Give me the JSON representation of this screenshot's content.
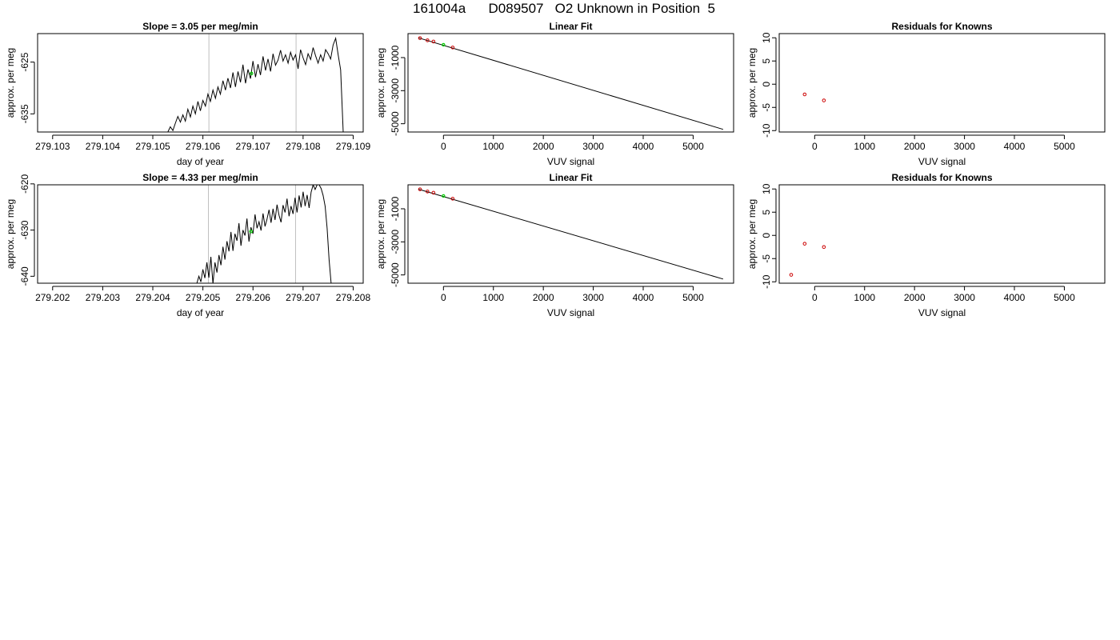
{
  "page_title": "161004a      D089507   O2 Unknown in Position  5",
  "colors": {
    "trace": "#000000",
    "marker_vline": "#bfbfbf",
    "known_points": "#cc0000",
    "unknown_point": "#00cc00",
    "frame": "#000000"
  },
  "chart_data": [
    {
      "id": "slope-1",
      "type": "line",
      "title": "Slope =  3.05  per meg/min",
      "xlabel": "day of year",
      "ylabel": "approx. per meg",
      "xlim": [
        279.1027,
        279.1092
      ],
      "ylim": [
        -638.5,
        -619.5
      ],
      "xticks": [
        279.103,
        279.104,
        279.105,
        279.106,
        279.107,
        279.108,
        279.109
      ],
      "xtick_labels": [
        "279.103",
        "279.104",
        "279.105",
        "279.106",
        "279.107",
        "279.108",
        "279.109"
      ],
      "yticks": [
        -625,
        -635
      ],
      "ytick_labels": [
        "-625",
        "-635"
      ],
      "vlines": [
        279.10612,
        279.10786
      ],
      "unknown_point": {
        "x": 279.10697,
        "y": -627.2
      },
      "series": [
        {
          "x": [
            279.1053,
            279.10535,
            279.1054,
            279.10545,
            279.1055,
            279.10555,
            279.1056,
            279.10565,
            279.1057,
            279.10575,
            279.1058,
            279.10585,
            279.1059,
            279.10595,
            279.106,
            279.10605,
            279.1061,
            279.10615,
            279.1062,
            279.10625,
            279.1063,
            279.10635,
            279.1064,
            279.10645,
            279.1065,
            279.10655,
            279.1066,
            279.10665,
            279.1067,
            279.10675,
            279.1068,
            279.10685,
            279.1069,
            279.10695,
            279.107,
            279.10705,
            279.1071,
            279.10715,
            279.1072,
            279.10725,
            279.1073,
            279.10735,
            279.1074,
            279.10745,
            279.1075,
            279.10755,
            279.1076,
            279.10765,
            279.1077,
            279.10775,
            279.1078,
            279.10785,
            279.1079,
            279.10795,
            279.108,
            279.10805,
            279.1081,
            279.10815,
            279.1082,
            279.10825,
            279.1083,
            279.10835,
            279.1084,
            279.10845,
            279.1085,
            279.10855,
            279.1086,
            279.10865,
            279.1087,
            279.10875,
            279.1088,
            279.10885
          ],
          "y": [
            -638.5,
            -637.5,
            -638.2,
            -636.8,
            -635.5,
            -636.6,
            -635.2,
            -636.4,
            -634.1,
            -635.6,
            -633.5,
            -635,
            -632.6,
            -634.4,
            -632.4,
            -633.5,
            -631.2,
            -632.6,
            -630.4,
            -632,
            -629.8,
            -631.2,
            -628.6,
            -630.4,
            -628.1,
            -630,
            -627,
            -629.8,
            -626.8,
            -628.9,
            -625.5,
            -629.1,
            -626.4,
            -628.2,
            -624.8,
            -627.9,
            -625.4,
            -627.5,
            -623.9,
            -626.6,
            -624.4,
            -626.8,
            -623.4,
            -625.6,
            -624.6,
            -622.7,
            -624.8,
            -623.6,
            -625.2,
            -623.1,
            -624.6,
            -623.6,
            -626.3,
            -622.6,
            -624.2,
            -625.5,
            -623.4,
            -624.5,
            -622.2,
            -623.8,
            -625.2,
            -623.6,
            -624.8,
            -622.6,
            -623.4,
            -624.4,
            -621.7,
            -620.4,
            -623.6,
            -626.5,
            -638.5,
            -638.5
          ]
        }
      ]
    },
    {
      "id": "linfit-1",
      "type": "scatter",
      "title": "Linear Fit",
      "xlabel": "VUV signal",
      "ylabel": "approx. per meg",
      "xlim": [
        -710,
        5810
      ],
      "ylim": [
        -5500,
        450
      ],
      "xticks": [
        0,
        1000,
        2000,
        3000,
        4000,
        5000
      ],
      "xtick_labels": [
        "0",
        "1000",
        "2000",
        "3000",
        "4000",
        "5000"
      ],
      "yticks": [
        -1000,
        -3000,
        -5000
      ],
      "ytick_labels": [
        "-1000",
        "-3000",
        "-5000"
      ],
      "fit_line": {
        "x": [
          -500,
          5600
        ],
        "y": [
          194,
          -5340
        ]
      },
      "known_points": {
        "x": [
          -470,
          -320,
          -200,
          185
        ],
        "y": [
          178,
          42,
          -30,
          -390
        ]
      },
      "unknown_point": {
        "x": 0,
        "y": -225
      }
    },
    {
      "id": "resid-1",
      "type": "scatter",
      "title": "Residuals for Knowns",
      "xlabel": "VUV signal",
      "ylabel": "approx. per meg",
      "xlim": [
        -710,
        5810
      ],
      "ylim": [
        -10.3,
        10.9
      ],
      "xticks": [
        0,
        1000,
        2000,
        3000,
        4000,
        5000
      ],
      "xtick_labels": [
        "0",
        "1000",
        "2000",
        "3000",
        "4000",
        "5000"
      ],
      "yticks": [
        10,
        5,
        0,
        -5,
        -10
      ],
      "ytick_labels": [
        "10",
        "5",
        "0",
        "-5",
        "-10"
      ],
      "known_points": {
        "x": [
          -200,
          185
        ],
        "y": [
          -2.2,
          -3.5
        ]
      }
    },
    {
      "id": "slope-2",
      "type": "line",
      "title": "Slope =  4.33  per meg/min",
      "xlabel": "day of year",
      "ylabel": "approx. per meg",
      "xlim": [
        279.2017,
        279.2082
      ],
      "ylim": [
        -641.5,
        -620.2
      ],
      "xticks": [
        279.202,
        279.203,
        279.204,
        279.205,
        279.206,
        279.207,
        279.208
      ],
      "xtick_labels": [
        "279.202",
        "279.203",
        "279.204",
        "279.205",
        "279.206",
        "279.207",
        "279.208"
      ],
      "yticks": [
        -620,
        -630,
        -640
      ],
      "ytick_labels": [
        "-620",
        "-630",
        "-640"
      ],
      "vlines": [
        279.20511,
        279.20685
      ],
      "unknown_point": {
        "x": 279.20596,
        "y": -630.3
      },
      "series": [
        {
          "x": [
            279.20488,
            279.20492,
            279.20496,
            279.205,
            279.20504,
            279.20508,
            279.20512,
            279.20516,
            279.2052,
            279.20524,
            279.20528,
            279.20532,
            279.20536,
            279.2054,
            279.20544,
            279.20548,
            279.20552,
            279.20556,
            279.2056,
            279.20564,
            279.20568,
            279.20572,
            279.20576,
            279.2058,
            279.20584,
            279.20588,
            279.20592,
            279.20596,
            279.206,
            279.20604,
            279.20608,
            279.20612,
            279.20616,
            279.2062,
            279.20624,
            279.20628,
            279.20632,
            279.20636,
            279.2064,
            279.20644,
            279.20648,
            279.20652,
            279.20656,
            279.2066,
            279.20664,
            279.20668,
            279.20672,
            279.20676,
            279.2068,
            279.20684,
            279.20688,
            279.20692,
            279.20696,
            279.207,
            279.20704,
            279.20708,
            279.20712,
            279.20716,
            279.2072,
            279.20724,
            279.20728,
            279.20732,
            279.20736,
            279.2074,
            279.20744,
            279.20748,
            279.20752,
            279.20756
          ],
          "y": [
            -641.5,
            -640,
            -641.2,
            -638.5,
            -640.4,
            -637,
            -640.3,
            -635.8,
            -641.6,
            -637,
            -639.2,
            -635.4,
            -637.6,
            -633.6,
            -636.4,
            -632.4,
            -634.6,
            -630.4,
            -634.5,
            -630.8,
            -632.3,
            -628.5,
            -633.4,
            -630,
            -631.2,
            -627.5,
            -632.5,
            -629.4,
            -630.8,
            -626.6,
            -629.6,
            -628.2,
            -630.1,
            -626.4,
            -629.2,
            -627.6,
            -625.6,
            -628.4,
            -625.4,
            -627.8,
            -624.5,
            -626.8,
            -628.3,
            -624.6,
            -626.2,
            -623.2,
            -627,
            -624.8,
            -626.5,
            -623,
            -626.2,
            -622.5,
            -625.1,
            -621.7,
            -624.8,
            -622.4,
            -625.2,
            -621.8,
            -620.2,
            -621.2,
            -620.2,
            -620.2,
            -621,
            -622.5,
            -624.8,
            -629.6,
            -636.5,
            -641.5
          ]
        }
      ]
    },
    {
      "id": "linfit-2",
      "type": "scatter",
      "title": "Linear Fit",
      "xlabel": "VUV signal",
      "ylabel": "approx. per meg",
      "xlim": [
        -710,
        5810
      ],
      "ylim": [
        -5500,
        450
      ],
      "xticks": [
        0,
        1000,
        2000,
        3000,
        4000,
        5000
      ],
      "xtick_labels": [
        "0",
        "1000",
        "2000",
        "3000",
        "4000",
        "5000"
      ],
      "yticks": [
        -1000,
        -3000,
        -5000
      ],
      "ytick_labels": [
        "-1000",
        "-3000",
        "-5000"
      ],
      "fit_line": {
        "x": [
          -500,
          5600
        ],
        "y": [
          185,
          -5250
        ]
      },
      "known_points": {
        "x": [
          -470,
          -320,
          -200,
          185
        ],
        "y": [
          178,
          42,
          -30,
          -390
        ]
      },
      "unknown_point": {
        "x": 0,
        "y": -225
      }
    },
    {
      "id": "resid-2",
      "type": "scatter",
      "title": "Residuals for Knowns",
      "xlabel": "VUV signal",
      "ylabel": "approx. per meg",
      "xlim": [
        -710,
        5810
      ],
      "ylim": [
        -10.3,
        10.9
      ],
      "xticks": [
        0,
        1000,
        2000,
        3000,
        4000,
        5000
      ],
      "xtick_labels": [
        "0",
        "1000",
        "2000",
        "3000",
        "4000",
        "5000"
      ],
      "yticks": [
        10,
        5,
        0,
        -5,
        -10
      ],
      "ytick_labels": [
        "10",
        "5",
        "0",
        "-5",
        "-10"
      ],
      "known_points": {
        "x": [
          -470,
          -200,
          185
        ],
        "y": [
          -8.5,
          -1.8,
          -2.5
        ]
      }
    }
  ]
}
